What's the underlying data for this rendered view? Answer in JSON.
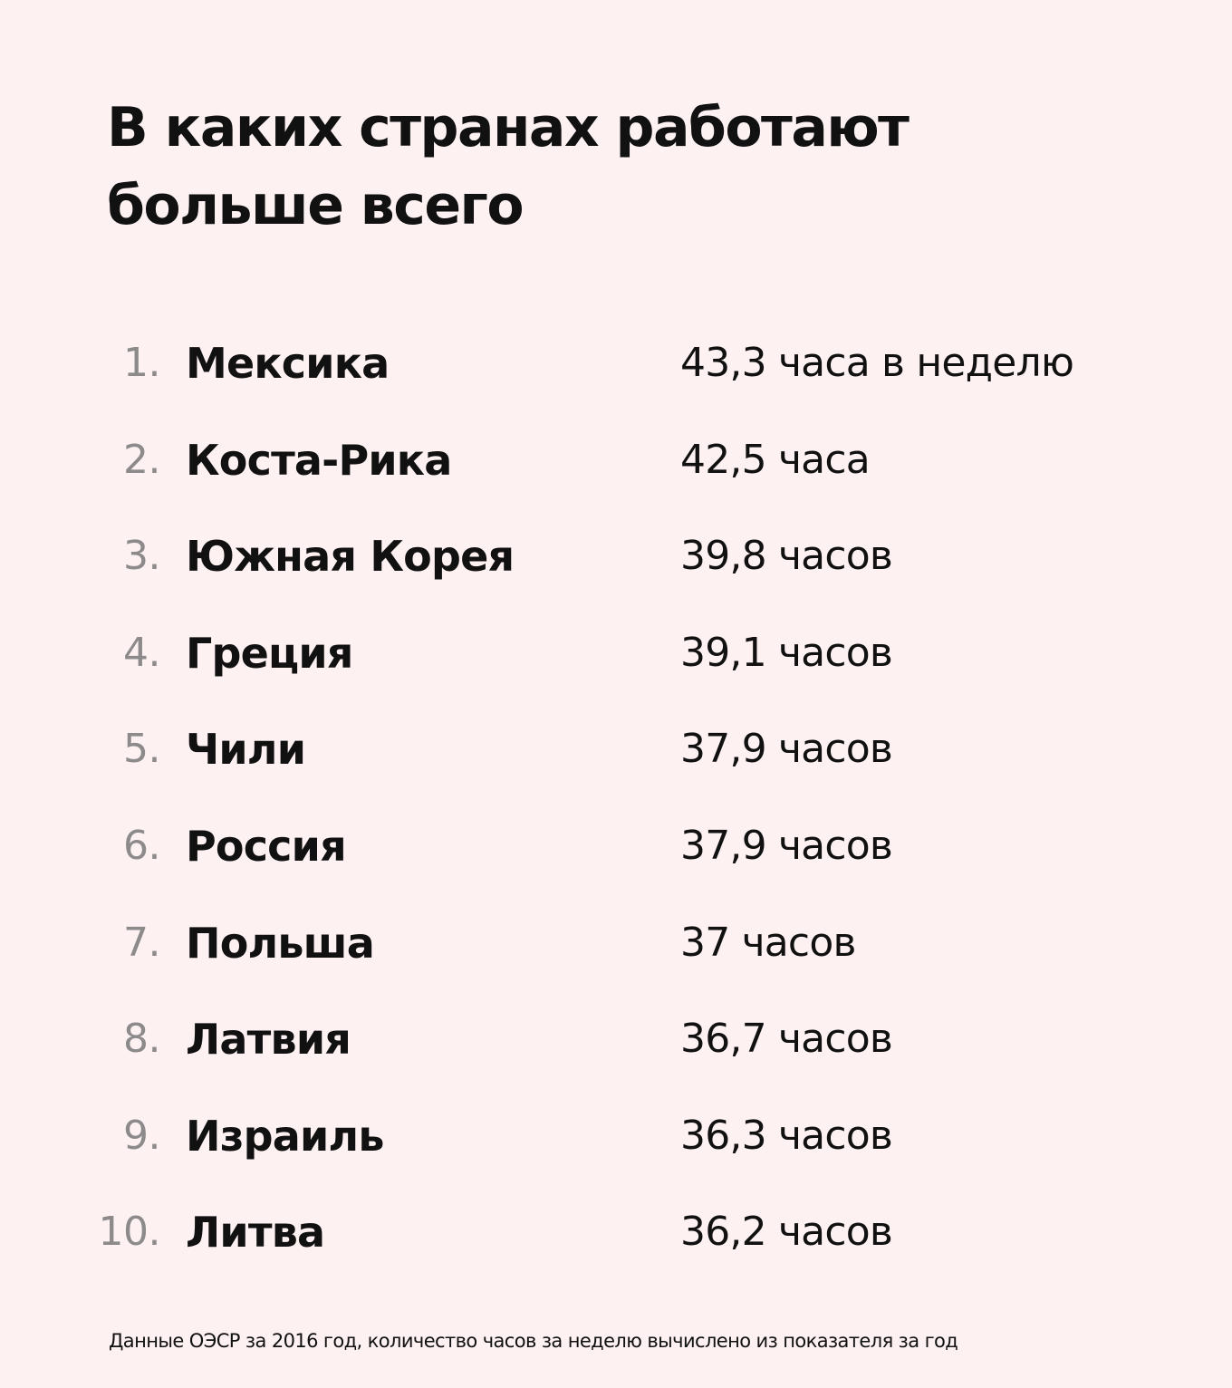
{
  "title": {
    "line1": "В каких странах работают",
    "line2": "больше всего"
  },
  "rows": [
    {
      "rank": "1.",
      "country": "Мексика",
      "hours": "43,3 часа в неделю"
    },
    {
      "rank": "2.",
      "country": "Коста-Рика",
      "hours": "42,5 часа"
    },
    {
      "rank": "3.",
      "country": "Южная Корея",
      "hours": "39,8 часов"
    },
    {
      "rank": "4.",
      "country": "Греция",
      "hours": "39,1 часов"
    },
    {
      "rank": "5.",
      "country": "Чили",
      "hours": "37,9 часов"
    },
    {
      "rank": "6.",
      "country": "Россия",
      "hours": "37,9 часов"
    },
    {
      "rank": "7.",
      "country": "Польша",
      "hours": "37 часов"
    },
    {
      "rank": "8.",
      "country": "Латвия",
      "hours": "36,7 часов"
    },
    {
      "rank": "9.",
      "country": "Израиль",
      "hours": "36,3 часов"
    },
    {
      "rank": "10.",
      "country": "Литва",
      "hours": "36,2 часов"
    }
  ],
  "footnote": "Данные ОЭСР за 2016 год, количество часов за неделю вычислено из показателя за год",
  "colors": {
    "background": "#fdf1f2",
    "text": "#111111",
    "rank": "#8c8a8b"
  }
}
